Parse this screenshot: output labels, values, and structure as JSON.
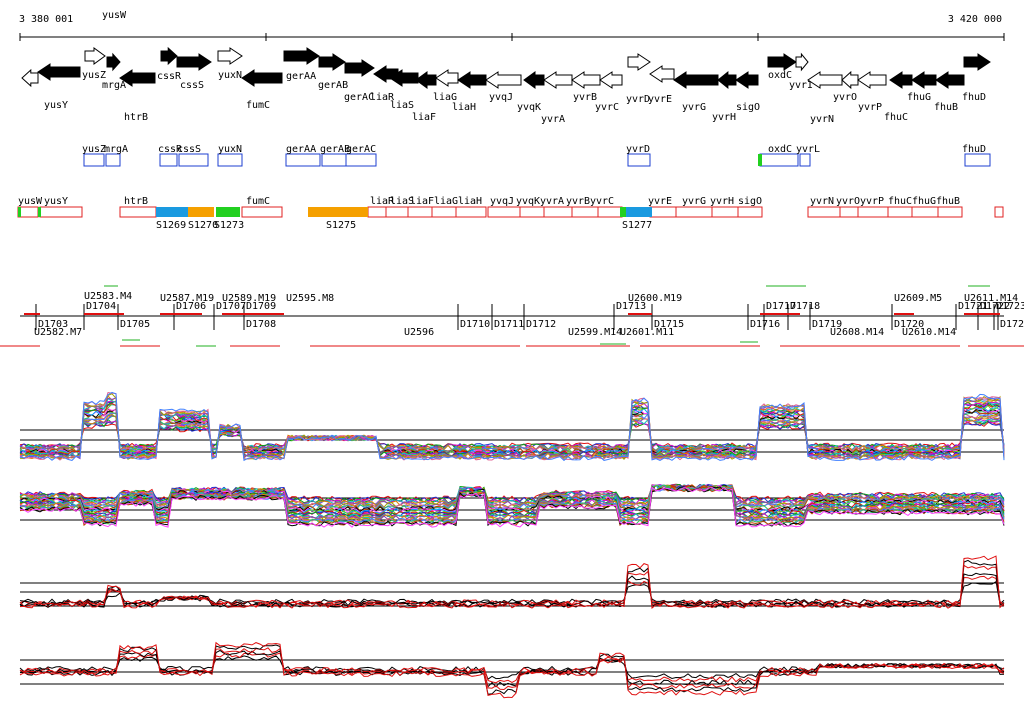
{
  "ruler": {
    "start": "3 380 001",
    "end": "3 420 000"
  },
  "colors": {
    "gene_filled": "#000000",
    "gene_open": "#ffffff",
    "box_blue": "#1c3fd0",
    "box_red": "#e02020",
    "seg_orange": "#f5a000",
    "seg_blue": "#1a9ae0",
    "seg_green": "#22d020",
    "line_red": "#e01010"
  },
  "genes": [
    {
      "name": "yusW",
      "strand": "-",
      "filled": false
    },
    {
      "name": "yusY",
      "strand": "-",
      "filled": true
    },
    {
      "name": "yusZ",
      "strand": "+",
      "filled": false
    },
    {
      "name": "mrgA",
      "strand": "+",
      "filled": true
    },
    {
      "name": "htrB",
      "strand": "-",
      "filled": true
    },
    {
      "name": "cssR",
      "strand": "+",
      "filled": true
    },
    {
      "name": "cssS",
      "strand": "+",
      "filled": true
    },
    {
      "name": "yuxN",
      "strand": "+",
      "filled": false
    },
    {
      "name": "fumC",
      "strand": "-",
      "filled": true
    },
    {
      "name": "gerAA",
      "strand": "+",
      "filled": true
    },
    {
      "name": "gerAB",
      "strand": "+",
      "filled": true
    },
    {
      "name": "gerAC",
      "strand": "+",
      "filled": true
    },
    {
      "name": "liaR",
      "strand": "-",
      "filled": true
    },
    {
      "name": "liaS",
      "strand": "-",
      "filled": true
    },
    {
      "name": "liaF",
      "strand": "-",
      "filled": true
    },
    {
      "name": "liaG",
      "strand": "-",
      "filled": false
    },
    {
      "name": "liaH",
      "strand": "-",
      "filled": true
    },
    {
      "name": "yvqJ",
      "strand": "-",
      "filled": false
    },
    {
      "name": "yvqK",
      "strand": "-",
      "filled": true
    },
    {
      "name": "yvrA",
      "strand": "-",
      "filled": false
    },
    {
      "name": "yvrB",
      "strand": "-",
      "filled": false
    },
    {
      "name": "yvrC",
      "strand": "-",
      "filled": false
    },
    {
      "name": "yvrD",
      "strand": "+",
      "filled": false
    },
    {
      "name": "yvrE",
      "strand": "-",
      "filled": false
    },
    {
      "name": "yvrG",
      "strand": "-",
      "filled": true
    },
    {
      "name": "yvrH",
      "strand": "-",
      "filled": true
    },
    {
      "name": "sigO",
      "strand": "-",
      "filled": true
    },
    {
      "name": "oxdC",
      "strand": "+",
      "filled": true
    },
    {
      "name": "yvrI",
      "strand": "+",
      "filled": false
    },
    {
      "name": "yvrN",
      "strand": "-",
      "filled": false
    },
    {
      "name": "yvrO",
      "strand": "-",
      "filled": false
    },
    {
      "name": "yvrP",
      "strand": "-",
      "filled": false
    },
    {
      "name": "fhuC",
      "strand": "-",
      "filled": true
    },
    {
      "name": "fhuG",
      "strand": "-",
      "filled": true
    },
    {
      "name": "fhuB",
      "strand": "-",
      "filled": true
    },
    {
      "name": "fhuD",
      "strand": "+",
      "filled": true
    }
  ],
  "promoter_track": [
    "yusZ",
    "mrgA",
    "cssR",
    "cssS",
    "yuxN",
    "gerAA",
    "gerAB",
    "gerAC",
    "yvrD",
    "oxdC",
    "yvrL",
    "fhuD"
  ],
  "operon_track": [
    "yusW",
    "yusY",
    "htrB",
    "fumC",
    "liaR",
    "liaS",
    "liaF",
    "liaG",
    "liaH",
    "yvqJ",
    "yvqK",
    "yvrA",
    "yvrB",
    "yvrC",
    "yvrE",
    "yvrG",
    "yvrH",
    "sigO",
    "yvrN",
    "yvrO",
    "yvrP",
    "fhuC",
    "fhuG",
    "fhuB"
  ],
  "segments": [
    "S1269",
    "S1270",
    "S1273",
    "S1275",
    "S1277"
  ],
  "downregion_labels": [
    "D1703",
    "D1704",
    "D1705",
    "D1706",
    "D1707",
    "D1708",
    "D1709",
    "D1710",
    "D1711",
    "D1712",
    "D1713",
    "D1715",
    "D1716",
    "D1717",
    "D1718",
    "D1719",
    "D1720",
    "D1721",
    "D1722",
    "D1723",
    "D1724"
  ],
  "upregion_labels": [
    "U2582.M7",
    "U2583.M4",
    "U2587.M19",
    "U2589.M19",
    "U2595.M8",
    "U2596",
    "U2599.M14",
    "U2600.M19",
    "U2601.M11",
    "U2608.M14",
    "U2609.M5",
    "U2610.M14",
    "U2611.M14"
  ],
  "panels": [
    "expression-panel-1",
    "expression-panel-2",
    "expression-panel-3",
    "expression-panel-4"
  ]
}
